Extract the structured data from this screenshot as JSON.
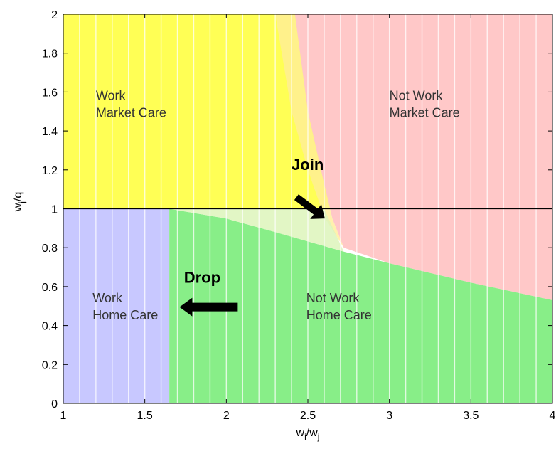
{
  "chart_data": {
    "type": "area",
    "xlabel": "w_i/w_j",
    "xlabel_main": "w",
    "xlabel_sub1": "i",
    "xlabel_mid": "/w",
    "xlabel_sub2": "j",
    "ylabel_main": "w",
    "ylabel_sub": "j",
    "ylabel_rest": "/q",
    "xlim": [
      1,
      4
    ],
    "ylim": [
      0,
      2
    ],
    "xticks": [
      "1",
      "1.5",
      "2",
      "2.5",
      "3",
      "3.5",
      "4"
    ],
    "yticks": [
      "0",
      "0.2",
      "0.4",
      "0.6",
      "0.8",
      "1",
      "1.2",
      "1.4",
      "1.6",
      "1.8",
      "2"
    ],
    "grid": "vertical lines only",
    "reference_line_y": 1,
    "regions": [
      {
        "id": "work_market",
        "label_line1": "Work",
        "label_line2": "Market Care",
        "color": "#ffff55"
      },
      {
        "id": "notwork_market",
        "label_line1": "Not Work",
        "label_line2": "Market Care",
        "color": "#ffc8c8"
      },
      {
        "id": "work_home",
        "label_line1": "Work",
        "label_line2": "Home Care",
        "color": "#c8c8ff"
      },
      {
        "id": "notwork_home",
        "label_line1": "Not Work",
        "label_line2": "Home Care",
        "color": "#88ee88"
      }
    ],
    "boundaries": {
      "work_vs_notwork_home_x": 1.65,
      "market_upper_curve": [
        [
          2.42,
          2.0
        ],
        [
          2.5,
          1.5
        ],
        [
          2.58,
          1.2
        ],
        [
          2.65,
          0.95
        ],
        [
          2.72,
          0.8
        ]
      ],
      "home_lower_curve": [
        [
          1.65,
          1.0
        ],
        [
          2.0,
          0.95
        ],
        [
          2.3,
          0.88
        ],
        [
          2.72,
          0.78
        ],
        [
          3.0,
          0.72
        ],
        [
          3.5,
          0.62
        ],
        [
          4.0,
          0.53
        ]
      ],
      "transition_band_curve": [
        [
          2.3,
          2.0
        ],
        [
          2.4,
          1.5
        ],
        [
          2.5,
          1.2
        ],
        [
          2.6,
          0.96
        ],
        [
          2.72,
          0.8
        ]
      ]
    },
    "annotations": [
      {
        "id": "join",
        "text": "Join",
        "x": 2.4,
        "y": 1.2
      },
      {
        "id": "drop",
        "text": "Drop",
        "x": 1.74,
        "y": 0.62
      }
    ]
  }
}
